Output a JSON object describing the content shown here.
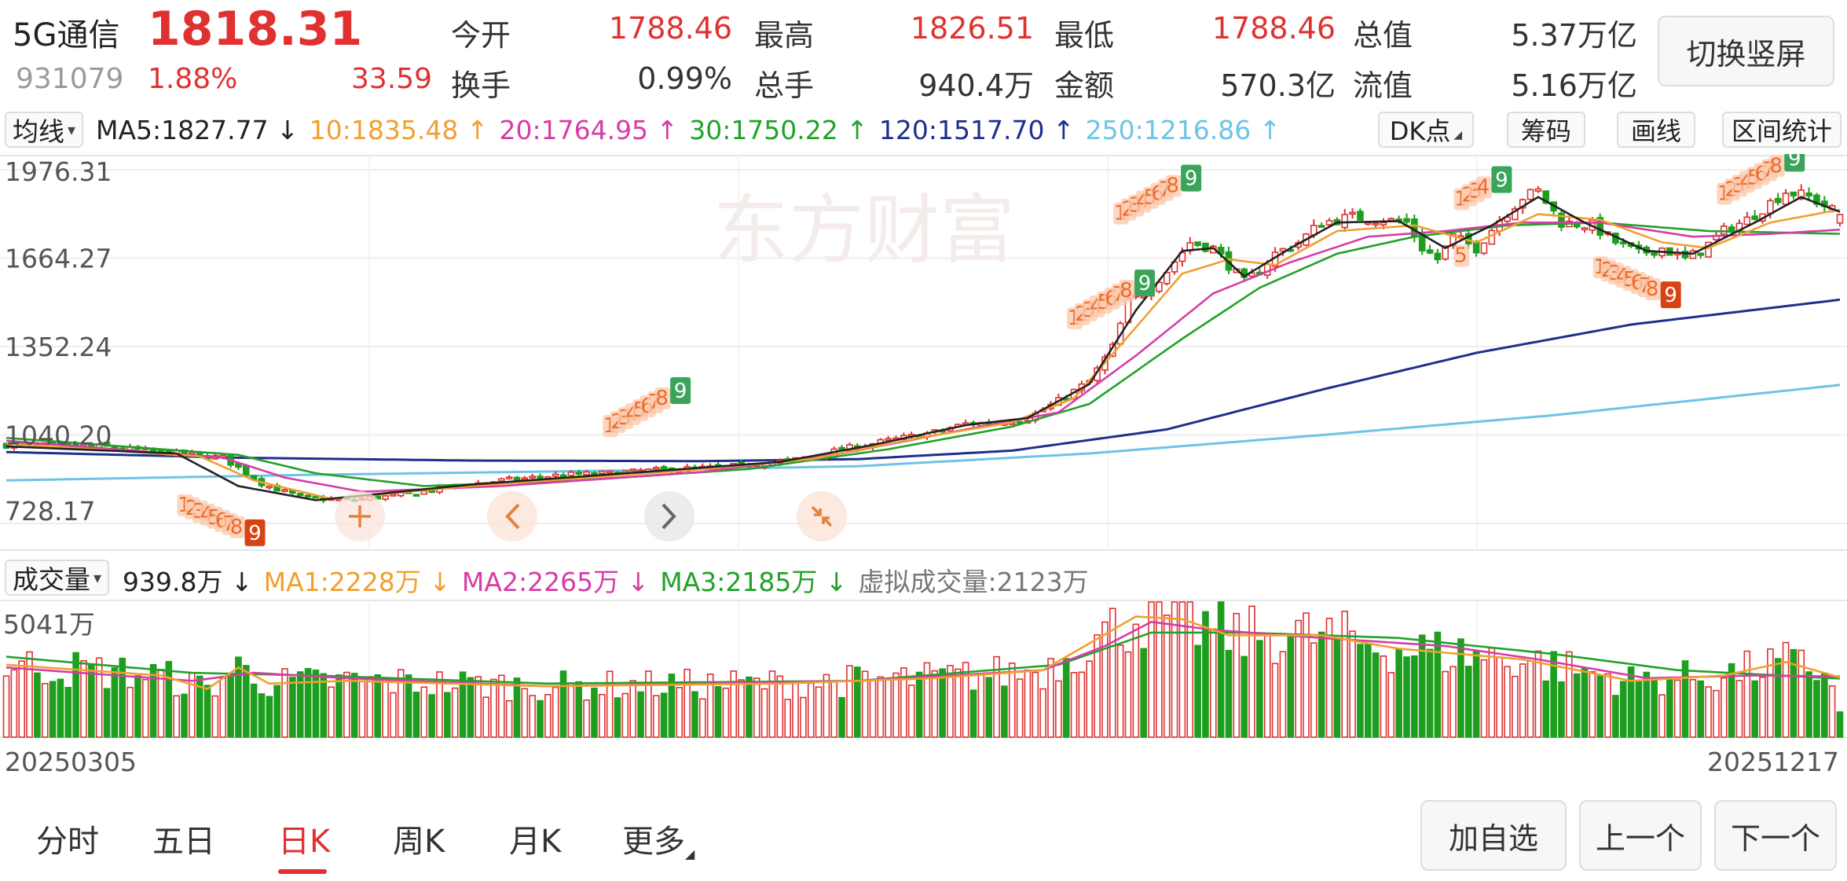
{
  "quote": {
    "name": "5G通信",
    "price": "1818.31",
    "code": "931079",
    "change_pct": "1.88%",
    "change_amt": "33.59",
    "fields": [
      {
        "label": "今开",
        "value": "1788.46",
        "color": "red"
      },
      {
        "label": "最高",
        "value": "1826.51",
        "color": "red"
      },
      {
        "label": "最低",
        "value": "1788.46",
        "color": "red"
      },
      {
        "label": "总值",
        "value": "5.37万亿",
        "color": "dark"
      },
      {
        "label": "换手",
        "value": "0.99%",
        "color": "dark"
      },
      {
        "label": "总手",
        "value": "940.4万",
        "color": "dark"
      },
      {
        "label": "金额",
        "value": "570.3亿",
        "color": "dark"
      },
      {
        "label": "流值",
        "value": "5.16万亿",
        "color": "dark"
      }
    ],
    "switch_button": "切换竖屏"
  },
  "ma_bar": {
    "selector": "均线",
    "items": [
      {
        "text": "MA5:1827.77 ↓",
        "color": "#222222"
      },
      {
        "text": "10:1835.48 ↑",
        "color": "#f0a030"
      },
      {
        "text": "20:1764.95 ↑",
        "color": "#d63da6"
      },
      {
        "text": "30:1750.22 ↑",
        "color": "#22a22a"
      },
      {
        "text": "120:1517.70 ↑",
        "color": "#1f2f8c"
      },
      {
        "text": "250:1216.86 ↑",
        "color": "#6ec3e6"
      }
    ],
    "tools": [
      "DK点",
      "筹码",
      "画线",
      "区间统计"
    ]
  },
  "vol_bar": {
    "selector": "成交量",
    "items": [
      {
        "text": "939.8万 ↓",
        "color": "#222222"
      },
      {
        "text": "MA1:2228万 ↓",
        "color": "#f0a030"
      },
      {
        "text": "MA2:2265万 ↓",
        "color": "#d63da6"
      },
      {
        "text": "MA3:2185万 ↓",
        "color": "#22a22a"
      },
      {
        "text": "虚拟成交量:2123万",
        "color": "#777777"
      }
    ]
  },
  "chart_data": {
    "type": "candlestick",
    "y_ticks": [
      "1976.31",
      "1664.27",
      "1352.24",
      "1040.20",
      "728.17"
    ],
    "ylim": [
      728.17,
      1976.31
    ],
    "volume_label": "5041万",
    "volume_max": 5041,
    "start_date": "20250305",
    "end_date": "20251217",
    "colors": {
      "up": "#e03131",
      "down": "#1e9e1e",
      "ma5": "#222222",
      "ma10": "#f0a030",
      "ma20": "#d63da6",
      "ma30": "#22a22a",
      "ma120": "#1f2f8c",
      "ma250": "#6ec3e6"
    },
    "close_path": [
      [
        0,
        1005
      ],
      [
        12,
        1000
      ],
      [
        22,
        975
      ],
      [
        28,
        960
      ],
      [
        33,
        870
      ],
      [
        38,
        820
      ],
      [
        44,
        810
      ],
      [
        52,
        830
      ],
      [
        58,
        860
      ],
      [
        64,
        880
      ],
      [
        72,
        900
      ],
      [
        78,
        905
      ],
      [
        86,
        920
      ],
      [
        92,
        925
      ],
      [
        98,
        940
      ],
      [
        104,
        960
      ],
      [
        108,
        990
      ],
      [
        112,
        1010
      ],
      [
        116,
        1030
      ],
      [
        120,
        1050
      ],
      [
        124,
        1080
      ],
      [
        128,
        1085
      ],
      [
        132,
        1100
      ],
      [
        136,
        1160
      ],
      [
        140,
        1230
      ],
      [
        143,
        1350
      ],
      [
        145,
        1510
      ],
      [
        147,
        1540
      ],
      [
        150,
        1620
      ],
      [
        153,
        1720
      ],
      [
        156,
        1700
      ],
      [
        158,
        1640
      ],
      [
        160,
        1580
      ],
      [
        162,
        1620
      ],
      [
        164,
        1680
      ],
      [
        167,
        1720
      ],
      [
        170,
        1790
      ],
      [
        174,
        1810
      ],
      [
        178,
        1800
      ],
      [
        181,
        1790
      ],
      [
        183,
        1700
      ],
      [
        185,
        1660
      ],
      [
        187,
        1740
      ],
      [
        190,
        1700
      ],
      [
        193,
        1800
      ],
      [
        196,
        1880
      ],
      [
        198,
        1900
      ],
      [
        201,
        1790
      ],
      [
        205,
        1780
      ],
      [
        208,
        1720
      ],
      [
        211,
        1680
      ],
      [
        214,
        1700
      ],
      [
        217,
        1660
      ],
      [
        219,
        1690
      ],
      [
        222,
        1760
      ],
      [
        225,
        1800
      ],
      [
        228,
        1860
      ],
      [
        230,
        1900
      ],
      [
        233,
        1880
      ],
      [
        235,
        1850
      ],
      [
        237,
        1818.31
      ]
    ],
    "moving_averages": {
      "ma5": [
        [
          0,
          1000
        ],
        [
          22,
          975
        ],
        [
          30,
          860
        ],
        [
          40,
          810
        ],
        [
          60,
          865
        ],
        [
          85,
          915
        ],
        [
          100,
          945
        ],
        [
          112,
          1005
        ],
        [
          124,
          1075
        ],
        [
          132,
          1100
        ],
        [
          140,
          1220
        ],
        [
          146,
          1480
        ],
        [
          152,
          1690
        ],
        [
          156,
          1700
        ],
        [
          160,
          1600
        ],
        [
          166,
          1700
        ],
        [
          172,
          1790
        ],
        [
          180,
          1795
        ],
        [
          186,
          1700
        ],
        [
          192,
          1780
        ],
        [
          198,
          1880
        ],
        [
          204,
          1790
        ],
        [
          212,
          1690
        ],
        [
          218,
          1680
        ],
        [
          226,
          1790
        ],
        [
          232,
          1880
        ],
        [
          237,
          1827.77
        ]
      ],
      "ma10": [
        [
          0,
          1010
        ],
        [
          25,
          965
        ],
        [
          32,
          880
        ],
        [
          42,
          815
        ],
        [
          60,
          860
        ],
        [
          88,
          915
        ],
        [
          104,
          955
        ],
        [
          118,
          1030
        ],
        [
          130,
          1085
        ],
        [
          138,
          1170
        ],
        [
          146,
          1420
        ],
        [
          152,
          1610
        ],
        [
          158,
          1660
        ],
        [
          164,
          1640
        ],
        [
          172,
          1760
        ],
        [
          182,
          1780
        ],
        [
          190,
          1720
        ],
        [
          198,
          1820
        ],
        [
          206,
          1800
        ],
        [
          214,
          1720
        ],
        [
          220,
          1700
        ],
        [
          228,
          1790
        ],
        [
          237,
          1835.48
        ]
      ],
      "ma20": [
        [
          0,
          1020
        ],
        [
          28,
          960
        ],
        [
          36,
          890
        ],
        [
          46,
          840
        ],
        [
          64,
          860
        ],
        [
          90,
          910
        ],
        [
          108,
          975
        ],
        [
          124,
          1060
        ],
        [
          136,
          1120
        ],
        [
          146,
          1320
        ],
        [
          156,
          1540
        ],
        [
          166,
          1650
        ],
        [
          176,
          1740
        ],
        [
          186,
          1760
        ],
        [
          196,
          1790
        ],
        [
          206,
          1790
        ],
        [
          218,
          1740
        ],
        [
          228,
          1750
        ],
        [
          237,
          1764.95
        ]
      ],
      "ma30": [
        [
          0,
          1030
        ],
        [
          30,
          970
        ],
        [
          40,
          905
        ],
        [
          54,
          860
        ],
        [
          74,
          880
        ],
        [
          96,
          920
        ],
        [
          114,
          990
        ],
        [
          130,
          1070
        ],
        [
          140,
          1150
        ],
        [
          152,
          1380
        ],
        [
          162,
          1560
        ],
        [
          172,
          1680
        ],
        [
          182,
          1740
        ],
        [
          194,
          1780
        ],
        [
          206,
          1790
        ],
        [
          220,
          1760
        ],
        [
          237,
          1750.22
        ]
      ],
      "ma120": [
        [
          0,
          980
        ],
        [
          30,
          960
        ],
        [
          60,
          950
        ],
        [
          90,
          948
        ],
        [
          110,
          955
        ],
        [
          130,
          985
        ],
        [
          150,
          1060
        ],
        [
          170,
          1200
        ],
        [
          190,
          1330
        ],
        [
          210,
          1430
        ],
        [
          237,
          1517.7
        ]
      ],
      "ma250": [
        [
          0,
          880
        ],
        [
          40,
          900
        ],
        [
          80,
          915
        ],
        [
          110,
          930
        ],
        [
          140,
          975
        ],
        [
          170,
          1040
        ],
        [
          200,
          1110
        ],
        [
          237,
          1216.86
        ]
      ]
    },
    "td_markers": [
      {
        "i": 23,
        "price": 770,
        "digits": "12345678",
        "nine": "9",
        "nine_color": "#d84315"
      },
      {
        "i": 78,
        "price": 1050,
        "digits": "12345678",
        "nine": "9",
        "nine_color": "#3aa45a"
      },
      {
        "i": 138,
        "price": 1430,
        "digits": "12345678",
        "nine": "9",
        "nine_color": "#3aa45a"
      },
      {
        "i": 144,
        "price": 1800,
        "digits": "12345678",
        "nine": "9",
        "nine_color": "#3aa45a"
      },
      {
        "i": 188,
        "price": 1850,
        "digits": "1234",
        "nine": "9",
        "nine_color": "#3aa45a"
      },
      {
        "i": 188,
        "price": 1650,
        "digits": "5",
        "nine": "",
        "nine_color": ""
      },
      {
        "i": 206,
        "price": 1610,
        "digits": "12345678",
        "nine": "9",
        "nine_color": "#d84315"
      },
      {
        "i": 222,
        "price": 1870,
        "digits": "12345678",
        "nine": "9",
        "nine_color": "#3aa45a"
      }
    ],
    "watermark": "东方财富",
    "volume_ma": {
      "ma1": [
        [
          0,
          2700
        ],
        [
          20,
          2300
        ],
        [
          26,
          1800
        ],
        [
          30,
          2600
        ],
        [
          34,
          2000
        ],
        [
          44,
          2100
        ],
        [
          70,
          1900
        ],
        [
          100,
          2000
        ],
        [
          120,
          2200
        ],
        [
          134,
          2500
        ],
        [
          140,
          3500
        ],
        [
          146,
          4500
        ],
        [
          152,
          4400
        ],
        [
          158,
          3800
        ],
        [
          170,
          3800
        ],
        [
          180,
          3300
        ],
        [
          196,
          2900
        ],
        [
          210,
          2100
        ],
        [
          222,
          2300
        ],
        [
          230,
          2800
        ],
        [
          237,
          2228
        ]
      ],
      "ma2": [
        [
          0,
          2600
        ],
        [
          24,
          2100
        ],
        [
          32,
          2400
        ],
        [
          44,
          2200
        ],
        [
          70,
          1900
        ],
        [
          110,
          2100
        ],
        [
          134,
          2500
        ],
        [
          142,
          3400
        ],
        [
          148,
          4300
        ],
        [
          156,
          4000
        ],
        [
          170,
          3700
        ],
        [
          186,
          3400
        ],
        [
          198,
          2900
        ],
        [
          212,
          2200
        ],
        [
          226,
          2300
        ],
        [
          237,
          2265
        ]
      ],
      "ma3": [
        [
          0,
          3000
        ],
        [
          24,
          2400
        ],
        [
          40,
          2300
        ],
        [
          70,
          2000
        ],
        [
          110,
          2100
        ],
        [
          136,
          2700
        ],
        [
          148,
          3900
        ],
        [
          160,
          3900
        ],
        [
          180,
          3700
        ],
        [
          200,
          3100
        ],
        [
          216,
          2500
        ],
        [
          237,
          2185
        ]
      ]
    }
  },
  "tabs": [
    "分时",
    "五日",
    "日K",
    "周K",
    "月K",
    "更多"
  ],
  "active_tab": "日K",
  "buttons": [
    "加自选",
    "上一个",
    "下一个"
  ]
}
